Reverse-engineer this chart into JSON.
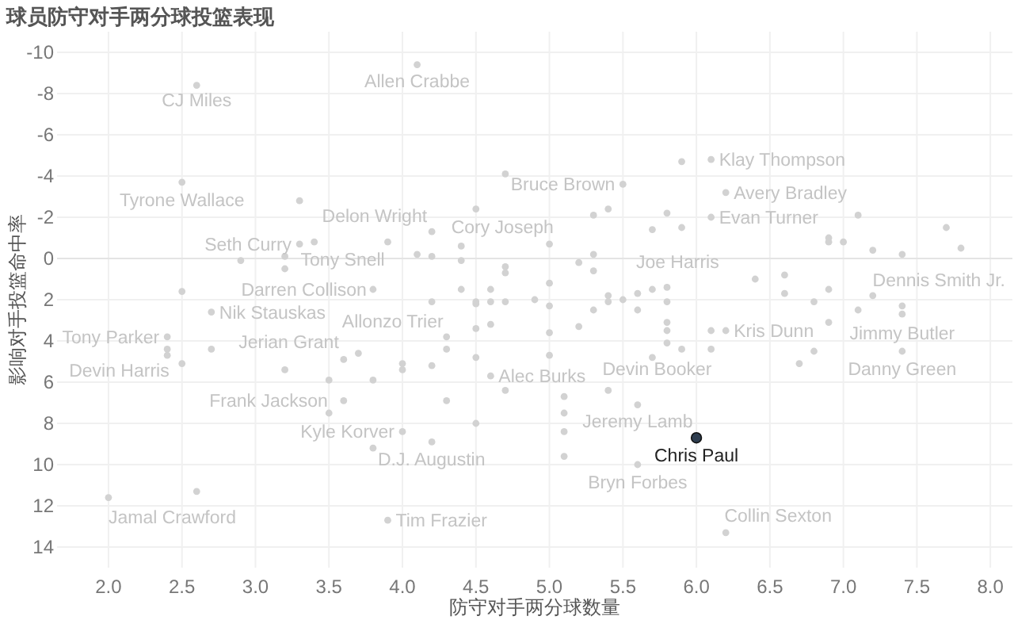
{
  "chart_data": {
    "type": "scatter",
    "title": "球员防守对手两分球投篮表现",
    "xlabel": "防守对手两分球数量",
    "ylabel": "影响对手投篮命中率",
    "xlim": [
      1.65,
      8.15
    ],
    "ylim": [
      15,
      -11
    ],
    "xticks": [
      {
        "value": 2,
        "label": "2.0"
      },
      {
        "value": 2.5,
        "label": "2.5"
      },
      {
        "value": 3,
        "label": "3.0"
      },
      {
        "value": 3.5,
        "label": "3.5"
      },
      {
        "value": 4,
        "label": "4.0"
      },
      {
        "value": 4.5,
        "label": "4.5"
      },
      {
        "value": 5,
        "label": "5.0"
      },
      {
        "value": 5.5,
        "label": "5.5"
      },
      {
        "value": 6,
        "label": "6.0"
      },
      {
        "value": 6.5,
        "label": "6.5"
      },
      {
        "value": 7,
        "label": "7.0"
      },
      {
        "value": 7.5,
        "label": "7.5"
      },
      {
        "value": 8,
        "label": "8.0"
      }
    ],
    "yticks": [
      -10,
      -8,
      -6,
      -4,
      -2,
      0,
      2,
      4,
      6,
      8,
      10,
      12,
      14
    ],
    "grid": true,
    "marker": "circle",
    "series": [
      {
        "color": "#d2d2d2",
        "x": [
          4.1,
          2.6,
          2.5,
          3.3,
          4.5,
          4.7,
          4.2,
          3.9,
          3.3,
          3.4,
          4.4,
          2.9,
          3.2,
          3.2,
          4.1,
          4.2,
          4.4,
          4.7,
          4.7,
          2.5,
          3.8,
          4.4,
          4.6,
          4.2,
          4.5,
          4.5,
          4.6,
          4.7,
          5.5,
          5.9,
          6.1,
          6.2,
          5.3,
          5.4,
          5.8,
          5.7,
          5.9,
          6.1,
          7.1,
          6.9,
          6.9,
          7.0,
          7.7,
          7.8,
          7.2,
          7.4,
          5.0,
          5.3,
          5.2,
          5.3,
          6.4,
          6.6,
          6.6,
          5.0,
          6.9,
          7.2,
          4.9,
          5.0,
          5.4,
          5.4,
          5.5,
          5.6,
          5.7,
          5.8,
          5.8,
          6.8,
          5.3,
          5.6,
          7.4,
          7.4,
          7.1,
          2.7,
          2.4,
          2.4,
          2.4,
          2.7,
          2.5,
          3.2,
          3.5,
          3.6,
          3.7,
          3.8,
          4.0,
          4.0,
          4.2,
          4.3,
          4.3,
          4.5,
          4.6,
          4.5,
          4.6,
          4.7,
          3.6,
          3.5,
          4.3,
          4.5,
          4.0,
          3.8,
          4.2,
          2.6,
          2.0,
          3.9,
          5.0,
          5.2,
          5.8,
          5.8,
          5.8,
          6.1,
          6.2,
          6.9,
          5.9,
          6.1,
          5.7,
          6.7,
          6.8,
          7.4,
          5.0,
          5.1,
          5.1,
          5.1,
          5.1,
          5.4,
          5.6,
          5.6,
          6.2
        ],
        "values": [
          -9.4,
          -8.4,
          -3.7,
          -2.8,
          -2.4,
          -4.1,
          -1.3,
          -0.8,
          -0.7,
          -0.8,
          -0.6,
          0.1,
          -0.1,
          0.5,
          -0.2,
          -0.1,
          0.1,
          0.4,
          0.7,
          1.6,
          1.5,
          1.5,
          1.5,
          2.1,
          2.1,
          2.2,
          2.1,
          2.1,
          -3.6,
          -4.7,
          -4.8,
          -3.2,
          -2.1,
          -2.4,
          -2.2,
          -1.4,
          -1.5,
          -2.0,
          -2.1,
          -1.0,
          -0.8,
          -0.8,
          -1.5,
          -0.5,
          -0.4,
          -0.2,
          -0.7,
          -0.2,
          0.2,
          0.6,
          1.0,
          0.8,
          1.7,
          1.2,
          1.5,
          1.8,
          2.0,
          2.3,
          1.8,
          2.1,
          2.0,
          1.7,
          1.5,
          1.4,
          2.1,
          2.1,
          2.5,
          2.5,
          2.3,
          2.7,
          2.5,
          2.6,
          3.8,
          4.4,
          4.7,
          4.4,
          5.1,
          5.4,
          5.9,
          4.9,
          4.6,
          5.9,
          5.1,
          5.4,
          5.2,
          3.8,
          4.4,
          3.4,
          3.2,
          4.8,
          5.7,
          6.4,
          6.9,
          7.5,
          6.9,
          8.0,
          8.4,
          9.2,
          8.9,
          11.3,
          11.6,
          12.7,
          3.6,
          3.3,
          3.1,
          3.5,
          4.1,
          3.5,
          3.5,
          3.1,
          4.4,
          4.4,
          4.8,
          5.1,
          4.5,
          4.5,
          4.7,
          6.7,
          7.5,
          8.4,
          9.6,
          6.4,
          7.1,
          10.0,
          13.3
        ]
      },
      {
        "color": "#2e3d4f",
        "x": [
          6.0
        ],
        "values": [
          8.7
        ]
      }
    ],
    "annotations": [
      {
        "text": "Allen Crabbe",
        "x": 4.1,
        "y": -9.4
      },
      {
        "text": "CJ Miles",
        "x": 2.6,
        "y": -8.4
      },
      {
        "text": "Tyrone Wallace",
        "x": 2.5,
        "y": -3.7
      },
      {
        "text": "Delon Wright",
        "x": 4.2,
        "y": -1.3
      },
      {
        "text": "Seth Curry",
        "x": 3.3,
        "y": -0.7
      },
      {
        "text": "Cory Joseph",
        "x": 4.4,
        "y": -0.6
      },
      {
        "text": "Tony Snell",
        "x": 3.2,
        "y": -0.1
      },
      {
        "text": "Darren Collison",
        "x": 3.8,
        "y": 1.5
      },
      {
        "text": "Bruce Brown",
        "x": 5.5,
        "y": -3.6
      },
      {
        "text": "Klay Thompson",
        "x": 6.1,
        "y": -4.8
      },
      {
        "text": "Avery Bradley",
        "x": 6.2,
        "y": -3.2
      },
      {
        "text": "Evan Turner",
        "x": 6.1,
        "y": -2.0
      },
      {
        "text": "Joe Harris",
        "x": 6.4,
        "y": 1.0
      },
      {
        "text": "Dennis Smith Jr.",
        "x": 7.8,
        "y": -0.5
      },
      {
        "text": "Nik Stauskas",
        "x": 2.7,
        "y": 2.6
      },
      {
        "text": "Tony Parker",
        "x": 2.4,
        "y": 3.8
      },
      {
        "text": "Devin Harris",
        "x": 2.5,
        "y": 5.1
      },
      {
        "text": "Jerian Grant",
        "x": 3.6,
        "y": 4.9
      },
      {
        "text": "Allonzo Trier",
        "x": 4.3,
        "y": 3.8
      },
      {
        "text": "Alec Burks",
        "x": 4.6,
        "y": 5.7
      },
      {
        "text": "Frank Jackson",
        "x": 3.6,
        "y": 6.9
      },
      {
        "text": "Kyle Korver",
        "x": 4.0,
        "y": 8.4
      },
      {
        "text": "D.J. Augustin",
        "x": 3.8,
        "y": 9.2
      },
      {
        "text": "Jamal Crawford",
        "x": 2.0,
        "y": 11.6
      },
      {
        "text": "Tim Frazier",
        "x": 3.9,
        "y": 12.7
      },
      {
        "text": "Kris Dunn",
        "x": 6.2,
        "y": 3.5
      },
      {
        "text": "Devin Booker",
        "x": 5.7,
        "y": 4.8
      },
      {
        "text": "Jimmy Butler",
        "x": 7.4,
        "y": 2.7
      },
      {
        "text": "Danny Green",
        "x": 7.4,
        "y": 4.5
      },
      {
        "text": "Jeremy Lamb",
        "x": 5.6,
        "y": 7.1
      },
      {
        "text": "Chris Paul",
        "x": 6.0,
        "y": 8.7
      },
      {
        "text": "Bryn Forbes",
        "x": 5.6,
        "y": 10.0
      },
      {
        "text": "Collin Sexton",
        "x": 6.2,
        "y": 13.3
      }
    ]
  }
}
